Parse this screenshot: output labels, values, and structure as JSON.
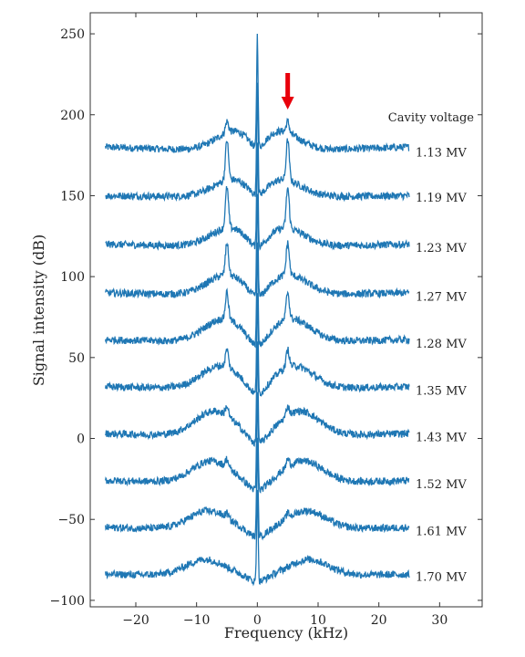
{
  "chart_data": {
    "type": "line",
    "xlabel": "Frequency (kHz)",
    "ylabel": "Signal intensity (dB)",
    "xlim": [
      -27.5,
      37
    ],
    "ylim": [
      -104,
      263
    ],
    "xticks": [
      -20,
      -10,
      0,
      10,
      20,
      30
    ],
    "yticks": [
      -100,
      -50,
      0,
      50,
      100,
      150,
      200,
      250
    ],
    "x_range": [
      -25,
      25
    ],
    "grid": false,
    "line_color": "#1f77b4",
    "annotation_color": "#e8000b",
    "legend_title": "Cavity voltage",
    "arrow_x": 5,
    "series": [
      {
        "name": "1.13 MV",
        "baseline": 180,
        "edge_level": 177,
        "hump_offset": 14,
        "hump_center": 3.5,
        "peak_offset": 7,
        "center_peak": 250
      },
      {
        "name": "1.19 MV",
        "baseline": 150,
        "edge_level": 149,
        "hump_offset": 12,
        "hump_center": 4.0,
        "peak_offset": 25,
        "center_peak": 220
      },
      {
        "name": "1.23 MV",
        "baseline": 120,
        "edge_level": 118,
        "hump_offset": 13,
        "hump_center": 4.5,
        "peak_offset": 25,
        "center_peak": 185
      },
      {
        "name": "1.27 MV",
        "baseline": 90,
        "edge_level": 88,
        "hump_offset": 14,
        "hump_center": 5.0,
        "peak_offset": 20,
        "center_peak": 155
      },
      {
        "name": "1.28 MV",
        "baseline": 61,
        "edge_level": 59,
        "hump_offset": 16,
        "hump_center": 5.5,
        "peak_offset": 17,
        "center_peak": 125
      },
      {
        "name": "1.35 MV",
        "baseline": 32,
        "edge_level": 30,
        "hump_offset": 16,
        "hump_center": 6.0,
        "peak_offset": 11,
        "center_peak": 95
      },
      {
        "name": "1.43 MV",
        "baseline": 3,
        "edge_level": 1,
        "hump_offset": 17,
        "hump_center": 7.0,
        "peak_offset": 6,
        "center_peak": 65
      },
      {
        "name": "1.52 MV",
        "baseline": -26,
        "edge_level": -28,
        "hump_offset": 15,
        "hump_center": 7.5,
        "peak_offset": 5,
        "center_peak": 35
      },
      {
        "name": "1.61 MV",
        "baseline": -55,
        "edge_level": -57,
        "hump_offset": 13,
        "hump_center": 8.0,
        "peak_offset": 3,
        "center_peak": 5
      },
      {
        "name": "1.70 MV",
        "baseline": -84,
        "edge_level": -85,
        "hump_offset": 11,
        "hump_center": 8.5,
        "peak_offset": 0,
        "center_peak": -25
      }
    ]
  }
}
